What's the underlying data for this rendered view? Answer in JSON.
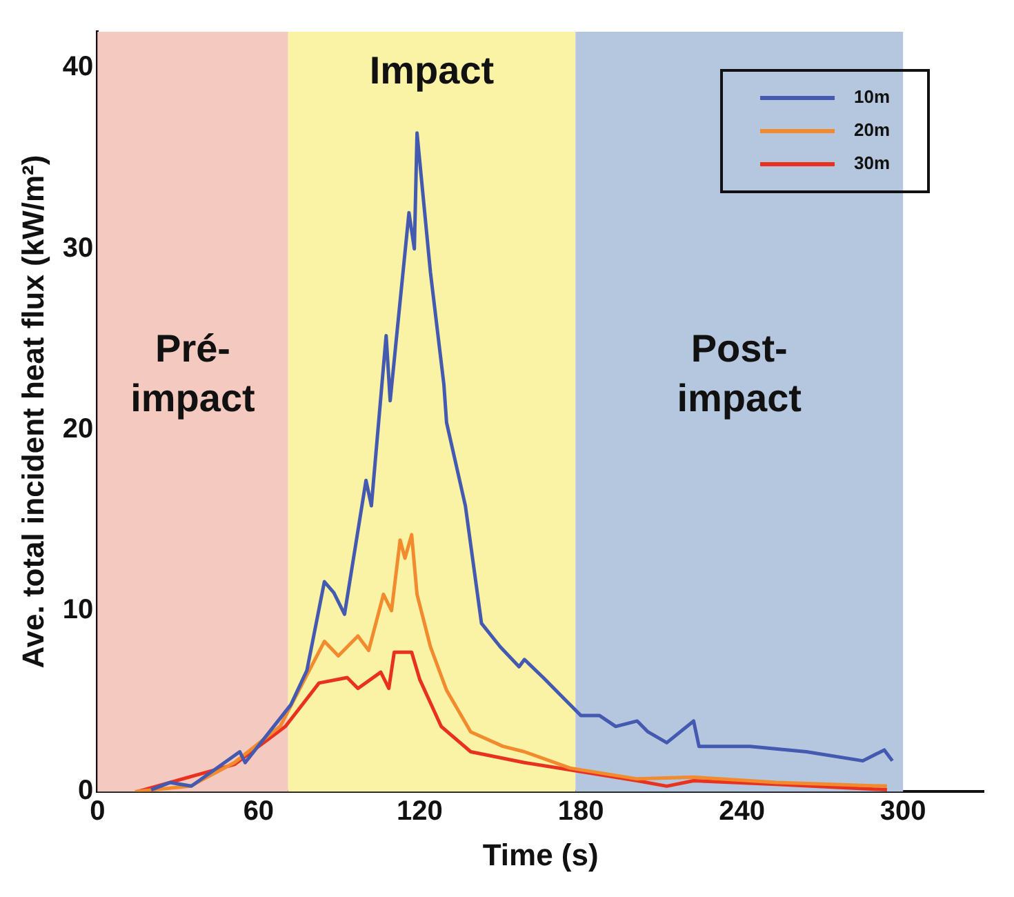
{
  "chart_data": {
    "type": "line",
    "xlabel": "Time (s)",
    "ylabel": "Ave. total incident heat flux (kW/m²)",
    "xlim": [
      0,
      330
    ],
    "xticks": [
      0,
      60,
      120,
      180,
      240,
      300
    ],
    "ylim": [
      0,
      42
    ],
    "yticks": [
      0,
      10,
      20,
      30,
      40
    ],
    "grid": false,
    "legend": "top right",
    "marker": "none",
    "line_style": "solid",
    "bands": [
      {
        "axis": "x",
        "from": 0,
        "to": 71,
        "label": "Pré-impact",
        "color": "#f4c9c0"
      },
      {
        "axis": "x",
        "from": 71,
        "to": 178,
        "label": "Impact",
        "color": "#faf3a6"
      },
      {
        "axis": "x",
        "from": 178,
        "to": 300,
        "label": "Post-impact",
        "color": "#b5c7de"
      }
    ],
    "series": [
      {
        "name": "10m",
        "color": "#4459b0",
        "x": [
          20,
          27,
          35,
          53,
          55,
          72,
          78,
          84.5,
          88,
          92,
          100,
          102,
          107.5,
          109,
          116,
          118,
          119,
          124,
          129,
          130,
          137,
          143,
          150,
          157,
          159,
          166,
          176,
          180,
          187,
          193,
          201,
          205,
          212,
          222,
          224,
          243,
          264,
          285,
          293,
          296
        ],
        "values": [
          0.1,
          0.5,
          0.3,
          2.2,
          1.6,
          4.8,
          6.7,
          11.6,
          11,
          9.8,
          17.2,
          15.8,
          25.2,
          21.6,
          32,
          30,
          36.4,
          28.7,
          22.5,
          20.4,
          15.8,
          9.3,
          8,
          6.9,
          7.3,
          6.3,
          4.8,
          4.2,
          4.2,
          3.6,
          3.9,
          3.3,
          2.7,
          3.9,
          2.5,
          2.5,
          2.2,
          1.7,
          2.3,
          1.7
        ]
      },
      {
        "name": "20m",
        "color": "#f28a2e",
        "x": [
          14,
          34.6,
          51,
          68,
          84.5,
          89.7,
          97,
          101,
          106.5,
          109.5,
          112.7,
          114.5,
          117,
          119,
          124,
          130,
          139,
          151,
          159,
          176,
          201,
          222,
          253,
          294
        ],
        "values": [
          0,
          0.3,
          1.6,
          3.6,
          8.3,
          7.5,
          8.6,
          7.8,
          10.9,
          10,
          13.9,
          12.9,
          14.2,
          10.9,
          8,
          5.6,
          3.3,
          2.5,
          2.2,
          1.3,
          0.7,
          0.8,
          0.5,
          0.3
        ]
      },
      {
        "name": "30m",
        "color": "#e8321f",
        "x": [
          15,
          51,
          70,
          82.5,
          93,
          97,
          105.5,
          108.5,
          110.5,
          117,
          120,
          128,
          139,
          159,
          176,
          201,
          212,
          222,
          253,
          294
        ],
        "values": [
          0,
          1.5,
          3.6,
          6,
          6.3,
          5.7,
          6.6,
          5.7,
          7.7,
          7.7,
          6.2,
          3.6,
          2.2,
          1.6,
          1.2,
          0.6,
          0.3,
          0.6,
          0.4,
          0.1
        ]
      }
    ]
  }
}
